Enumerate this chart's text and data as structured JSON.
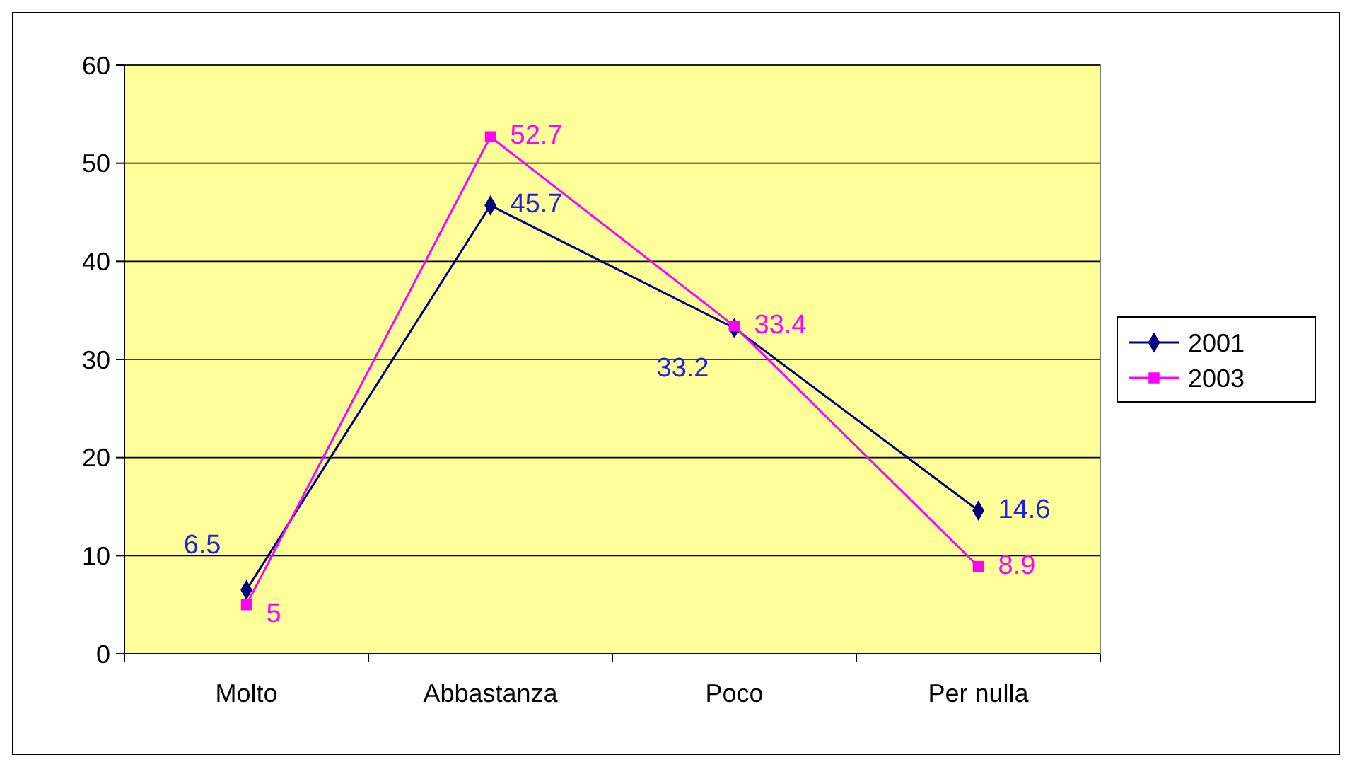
{
  "chart_data": {
    "type": "line",
    "categories": [
      "Molto",
      "Abbastanza",
      "Poco",
      "Per nulla"
    ],
    "series": [
      {
        "name": "2001",
        "color": "#000080",
        "values": [
          6.5,
          45.7,
          33.2,
          14.6
        ],
        "marker": "diamond"
      },
      {
        "name": "2003",
        "color": "#ff00ff",
        "values": [
          5,
          52.7,
          33.4,
          8.9
        ],
        "marker": "square"
      }
    ],
    "ylim": [
      0,
      60
    ],
    "yticks": [
      0,
      10,
      20,
      30,
      40,
      50,
      60
    ],
    "grid": "y",
    "legend": "right",
    "data_labels": true
  }
}
